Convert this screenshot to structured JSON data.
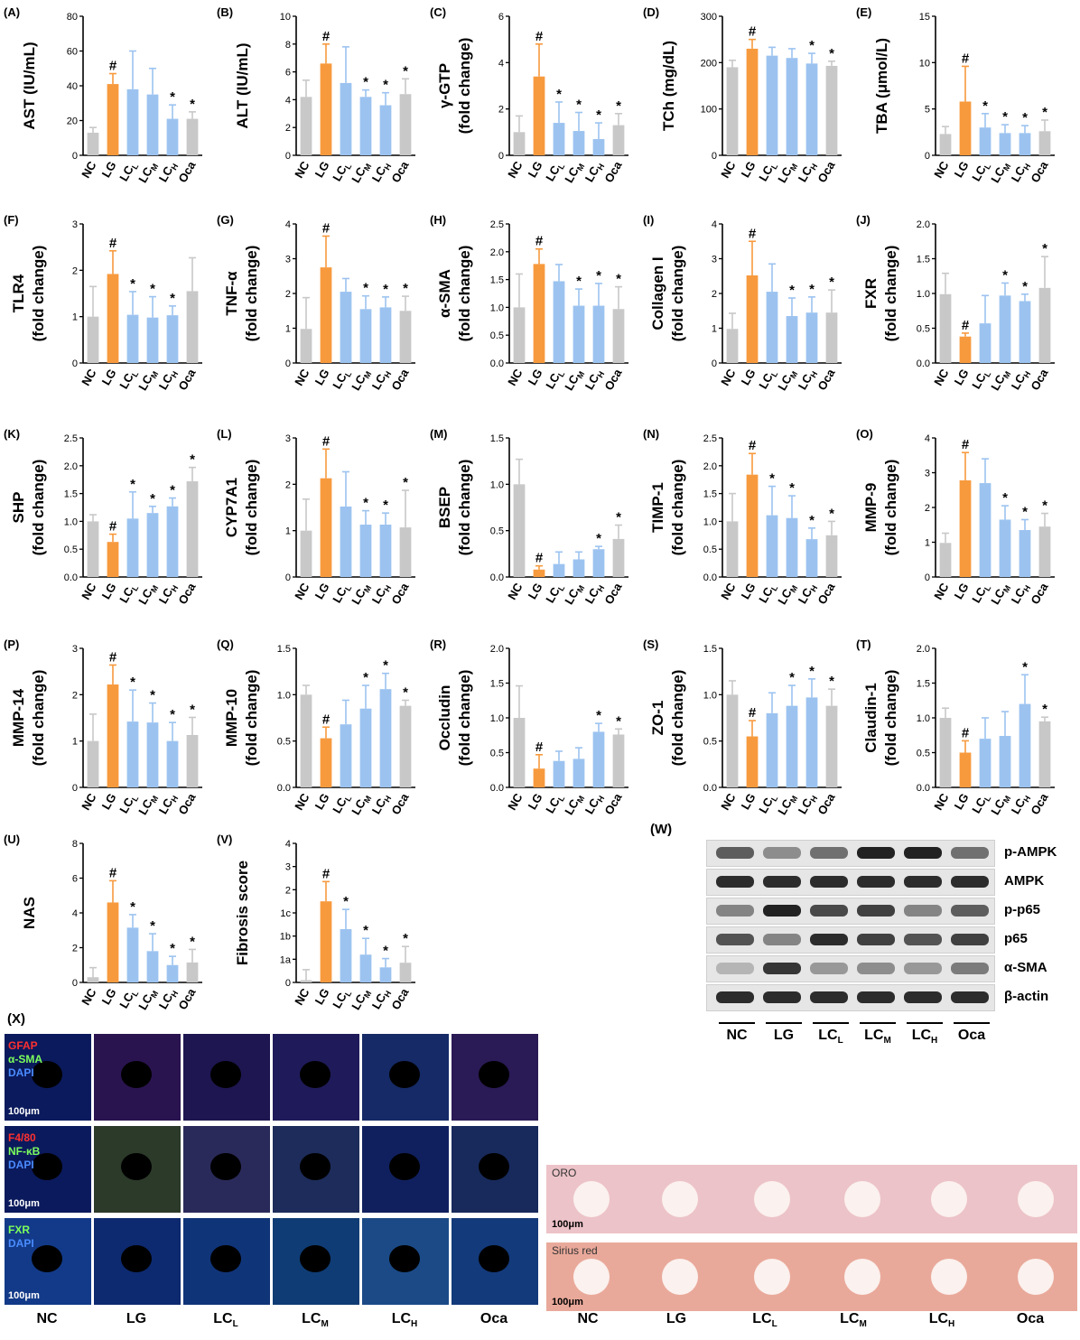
{
  "colors": {
    "nc": "#c8c8c8",
    "lg": "#f79a3e",
    "lc": "#9cc3f0",
    "oca": "#c8c8c8"
  },
  "groups": [
    "NC",
    "LG",
    "LCL",
    "LCM",
    "LCH",
    "Oca"
  ],
  "group_labels": [
    {
      "main": "NC",
      "sub": ""
    },
    {
      "main": "LG",
      "sub": ""
    },
    {
      "main": "LC",
      "sub": "L"
    },
    {
      "main": "LC",
      "sub": "M"
    },
    {
      "main": "LC",
      "sub": "H"
    },
    {
      "main": "Oca",
      "sub": ""
    }
  ],
  "chart_data": [
    {
      "panel": "(A)",
      "type": "bar",
      "ylabel": [
        "AST (IU/mL)"
      ],
      "yticks": [
        "0",
        "20",
        "40",
        "60",
        "80"
      ],
      "ylim": [
        0,
        80
      ],
      "values": [
        13,
        41,
        38,
        35,
        21,
        21
      ],
      "errors": [
        3,
        6,
        22,
        15,
        8,
        4
      ],
      "marks": [
        "",
        "#",
        "",
        "",
        "*",
        "*"
      ]
    },
    {
      "panel": "(B)",
      "type": "bar",
      "ylabel": [
        "ALT (IU/mL)"
      ],
      "yticks": [
        "0",
        "2",
        "4",
        "6",
        "8",
        "10"
      ],
      "ylim": [
        0,
        10
      ],
      "values": [
        4.2,
        6.6,
        5.2,
        4.2,
        3.6,
        4.4
      ],
      "errors": [
        1.2,
        1.4,
        2.6,
        0.5,
        0.9,
        1.1
      ],
      "marks": [
        "",
        "#",
        "",
        "*",
        "*",
        "*"
      ]
    },
    {
      "panel": "(C)",
      "type": "bar",
      "ylabel": [
        "γ-GTP",
        "(fold change)"
      ],
      "yticks": [
        "0",
        "2",
        "4",
        "6"
      ],
      "ylim": [
        0,
        6
      ],
      "values": [
        1.0,
        3.4,
        1.4,
        1.05,
        0.7,
        1.3
      ],
      "errors": [
        0.7,
        1.4,
        0.9,
        0.8,
        0.7,
        0.5
      ],
      "marks": [
        "",
        "#",
        "*",
        "*",
        "*",
        "*"
      ]
    },
    {
      "panel": "(D)",
      "type": "bar",
      "ylabel": [
        "TCh (mg/dL)"
      ],
      "yticks": [
        "0",
        "100",
        "200",
        "300"
      ],
      "ylim": [
        0,
        300
      ],
      "values": [
        190,
        230,
        215,
        210,
        198,
        193
      ],
      "errors": [
        15,
        20,
        18,
        20,
        22,
        10
      ],
      "marks": [
        "",
        "#",
        "",
        "",
        "*",
        "*"
      ]
    },
    {
      "panel": "(E)",
      "type": "bar",
      "ylabel": [
        "TBA (μmol/L)"
      ],
      "yticks": [
        "0",
        "5",
        "10",
        "15"
      ],
      "ylim": [
        0,
        15
      ],
      "values": [
        2.3,
        5.8,
        3.0,
        2.4,
        2.4,
        2.6
      ],
      "errors": [
        0.8,
        3.8,
        1.5,
        0.9,
        0.8,
        1.2
      ],
      "marks": [
        "",
        "#",
        "*",
        "*",
        "*",
        "*"
      ]
    },
    {
      "panel": "(F)",
      "type": "bar",
      "ylabel": [
        "TLR4",
        "(fold change)"
      ],
      "yticks": [
        "0",
        "1",
        "2",
        "3"
      ],
      "ylim": [
        0,
        3
      ],
      "values": [
        1.0,
        1.92,
        1.04,
        0.98,
        1.03,
        1.55
      ],
      "errors": [
        0.65,
        0.5,
        0.5,
        0.45,
        0.2,
        0.72
      ],
      "marks": [
        "",
        "#",
        "*",
        "*",
        "*",
        ""
      ]
    },
    {
      "panel": "(G)",
      "type": "bar",
      "ylabel": [
        "TNF-α",
        "(fold change)"
      ],
      "yticks": [
        "0",
        "1",
        "2",
        "3",
        "4"
      ],
      "ylim": [
        0,
        4
      ],
      "values": [
        0.98,
        2.75,
        2.05,
        1.55,
        1.6,
        1.5
      ],
      "errors": [
        0.9,
        0.9,
        0.38,
        0.38,
        0.3,
        0.42
      ],
      "marks": [
        "",
        "#",
        "",
        "*",
        "*",
        "*"
      ]
    },
    {
      "panel": "(H)",
      "type": "bar",
      "ylabel": [
        "α-SMA",
        "(fold change)"
      ],
      "yticks": [
        "0.0",
        "0.5",
        "1.0",
        "1.5",
        "2.0",
        "2.5"
      ],
      "ylim": [
        0,
        2.5
      ],
      "values": [
        1.0,
        1.78,
        1.47,
        1.03,
        1.03,
        0.97
      ],
      "errors": [
        0.6,
        0.27,
        0.3,
        0.3,
        0.4,
        0.4
      ],
      "marks": [
        "",
        "#",
        "",
        "*",
        "*",
        "*"
      ]
    },
    {
      "panel": "(I)",
      "type": "bar",
      "ylabel": [
        "Collagen I",
        "(fold change)"
      ],
      "yticks": [
        "0",
        "1",
        "2",
        "3",
        "4"
      ],
      "ylim": [
        0,
        4
      ],
      "values": [
        0.98,
        2.52,
        2.05,
        1.35,
        1.45,
        1.45
      ],
      "errors": [
        0.45,
        0.98,
        0.8,
        0.52,
        0.45,
        0.65
      ],
      "marks": [
        "",
        "#",
        "",
        "*",
        "*",
        "*"
      ]
    },
    {
      "panel": "(J)",
      "type": "bar",
      "ylabel": [
        "FXR",
        "(fold change)"
      ],
      "yticks": [
        "0.0",
        "0.5",
        "1.0",
        "1.5",
        "2.0"
      ],
      "ylim": [
        0,
        2.0
      ],
      "values": [
        0.99,
        0.38,
        0.57,
        0.97,
        0.89,
        1.08
      ],
      "errors": [
        0.3,
        0.05,
        0.4,
        0.18,
        0.1,
        0.45
      ],
      "marks": [
        "",
        "#",
        "",
        "*",
        "*",
        "*"
      ]
    },
    {
      "panel": "(K)",
      "type": "bar",
      "ylabel": [
        "SHP",
        "(fold change)"
      ],
      "yticks": [
        "0.0",
        "0.5",
        "1.0",
        "1.5",
        "2.0",
        "2.5"
      ],
      "ylim": [
        0,
        2.5
      ],
      "values": [
        1.0,
        0.63,
        1.05,
        1.15,
        1.27,
        1.72
      ],
      "errors": [
        0.12,
        0.14,
        0.48,
        0.12,
        0.15,
        0.25
      ],
      "marks": [
        "",
        "#",
        "*",
        "*",
        "*",
        "*"
      ]
    },
    {
      "panel": "(L)",
      "type": "bar",
      "ylabel": [
        "CYP7A1",
        "(fold change)"
      ],
      "yticks": [
        "0",
        "1",
        "2",
        "3"
      ],
      "ylim": [
        0,
        3
      ],
      "values": [
        1.0,
        2.13,
        1.52,
        1.13,
        1.13,
        1.07
      ],
      "errors": [
        0.68,
        0.63,
        0.75,
        0.3,
        0.25,
        0.8
      ],
      "marks": [
        "",
        "#",
        "",
        "*",
        "*",
        "*"
      ]
    },
    {
      "panel": "(M)",
      "type": "bar",
      "ylabel": [
        "BSEP",
        "(fold change)"
      ],
      "yticks": [
        "0.0",
        "0.5",
        "1.0",
        "1.5"
      ],
      "ylim": [
        0,
        1.5
      ],
      "values": [
        1.0,
        0.08,
        0.14,
        0.19,
        0.3,
        0.41
      ],
      "errors": [
        0.27,
        0.04,
        0.13,
        0.08,
        0.03,
        0.15
      ],
      "marks": [
        "",
        "#",
        "",
        "",
        "*",
        "*"
      ]
    },
    {
      "panel": "(N)",
      "type": "bar",
      "ylabel": [
        "TIMP-1",
        "(fold change)"
      ],
      "yticks": [
        "0.0",
        "0.5",
        "1.0",
        "1.5",
        "2.0",
        "2.5"
      ],
      "ylim": [
        0,
        2.5
      ],
      "values": [
        1.0,
        1.84,
        1.11,
        1.06,
        0.68,
        0.75
      ],
      "errors": [
        0.5,
        0.38,
        0.52,
        0.4,
        0.2,
        0.25
      ],
      "marks": [
        "",
        "#",
        "*",
        "*",
        "*",
        "*"
      ]
    },
    {
      "panel": "(O)",
      "type": "bar",
      "ylabel": [
        "MMP-9",
        "(fold change)"
      ],
      "yticks": [
        "0",
        "1",
        "2",
        "3",
        "4"
      ],
      "ylim": [
        0,
        4
      ],
      "values": [
        0.98,
        2.78,
        2.7,
        1.65,
        1.35,
        1.45
      ],
      "errors": [
        0.28,
        0.8,
        0.7,
        0.4,
        0.3,
        0.38
      ],
      "marks": [
        "",
        "#",
        "",
        "*",
        "*",
        "*"
      ]
    },
    {
      "panel": "(P)",
      "type": "bar",
      "ylabel": [
        "MMP-14",
        "(fold change)"
      ],
      "yticks": [
        "0",
        "1",
        "2",
        "3"
      ],
      "ylim": [
        0,
        3
      ],
      "values": [
        1.0,
        2.22,
        1.42,
        1.4,
        1.0,
        1.13
      ],
      "errors": [
        0.58,
        0.42,
        0.68,
        0.42,
        0.4,
        0.38
      ],
      "marks": [
        "",
        "#",
        "*",
        "*",
        "*",
        "*"
      ]
    },
    {
      "panel": "(Q)",
      "type": "bar",
      "ylabel": [
        "MMP-10",
        "(fold change)"
      ],
      "yticks": [
        "0.0",
        "0.5",
        "1.0",
        "1.5"
      ],
      "ylim": [
        0,
        1.5
      ],
      "values": [
        1.0,
        0.53,
        0.68,
        0.85,
        1.06,
        0.88
      ],
      "errors": [
        0.1,
        0.12,
        0.26,
        0.25,
        0.17,
        0.06
      ],
      "marks": [
        "",
        "#",
        "",
        "*",
        "*",
        "*"
      ]
    },
    {
      "panel": "(R)",
      "type": "bar",
      "ylabel": [
        "Occludin",
        "(fold change)"
      ],
      "yticks": [
        "0.0",
        "0.5",
        "1.0",
        "1.5",
        "2.0"
      ],
      "ylim": [
        0,
        2.0
      ],
      "values": [
        1.0,
        0.27,
        0.38,
        0.41,
        0.8,
        0.76
      ],
      "errors": [
        0.46,
        0.2,
        0.14,
        0.16,
        0.12,
        0.08
      ],
      "marks": [
        "",
        "#",
        "",
        "",
        "*",
        "*"
      ]
    },
    {
      "panel": "(S)",
      "type": "bar",
      "ylabel": [
        "ZO-1",
        "(fold change)"
      ],
      "yticks": [
        "0.0",
        "0.5",
        "1.0",
        "1.5"
      ],
      "ylim": [
        0,
        1.5
      ],
      "values": [
        1.0,
        0.55,
        0.8,
        0.88,
        0.97,
        0.88
      ],
      "errors": [
        0.15,
        0.17,
        0.22,
        0.22,
        0.2,
        0.18
      ],
      "marks": [
        "",
        "#",
        "",
        "*",
        "*",
        "*"
      ]
    },
    {
      "panel": "(T)",
      "type": "bar",
      "ylabel": [
        "Claudin-1",
        "(fold change)"
      ],
      "yticks": [
        "0.0",
        "0.5",
        "1.0",
        "1.5",
        "2.0"
      ],
      "ylim": [
        0,
        2.0
      ],
      "values": [
        1.0,
        0.5,
        0.7,
        0.74,
        1.2,
        0.95
      ],
      "errors": [
        0.14,
        0.17,
        0.3,
        0.35,
        0.42,
        0.06
      ],
      "marks": [
        "",
        "#",
        "",
        "",
        "*",
        "*"
      ]
    },
    {
      "panel": "(U)",
      "type": "bar",
      "ylabel": [
        "NAS"
      ],
      "yticks": [
        "0",
        "2",
        "4",
        "6",
        "8"
      ],
      "ylim": [
        0,
        8
      ],
      "values": [
        0.3,
        4.6,
        3.15,
        1.8,
        1.0,
        1.15
      ],
      "errors": [
        0.55,
        1.25,
        0.75,
        1.0,
        0.5,
        0.75
      ],
      "marks": [
        "",
        "#",
        "*",
        "*",
        "*",
        "*"
      ]
    },
    {
      "panel": "(V)",
      "type": "bar",
      "ylabel": [
        "Fibrosis score"
      ],
      "yticks": [
        "0",
        "1a",
        "1b",
        "1c",
        "2",
        "3",
        "4"
      ],
      "ylim": [
        0,
        6
      ],
      "values": [
        0.1,
        3.5,
        2.3,
        1.2,
        0.65,
        0.85
      ],
      "errors": [
        0.45,
        0.85,
        0.85,
        0.7,
        0.38,
        0.7
      ],
      "marks": [
        "",
        "#",
        "*",
        "*",
        "*",
        "*"
      ]
    }
  ],
  "western_blot": {
    "panel_label": "(W)",
    "rows": [
      "p-AMPK",
      "AMPK",
      "p-p65",
      "p65",
      "α-SMA",
      "β-actin"
    ],
    "intensities": [
      [
        0.7,
        0.45,
        0.6,
        1.0,
        1.0,
        0.6
      ],
      [
        0.95,
        0.95,
        0.95,
        0.95,
        0.95,
        0.95
      ],
      [
        0.5,
        1.0,
        0.8,
        0.85,
        0.5,
        0.7
      ],
      [
        0.75,
        0.5,
        0.95,
        0.85,
        0.75,
        0.85
      ],
      [
        0.25,
        0.9,
        0.4,
        0.45,
        0.4,
        0.55
      ],
      [
        0.95,
        0.95,
        0.95,
        0.95,
        0.95,
        0.95
      ]
    ]
  },
  "fluorescence": {
    "panel_label": "(X)",
    "rows": [
      {
        "stains": [
          {
            "text": "GFAP",
            "color": "#ff3030"
          },
          {
            "text": "α-SMA",
            "color": "#7cff5c"
          },
          {
            "text": "DAPI",
            "color": "#4a8cff"
          }
        ],
        "scale": "100μm"
      },
      {
        "stains": [
          {
            "text": "F4/80",
            "color": "#ff3030"
          },
          {
            "text": "NF-κB",
            "color": "#7cff5c"
          },
          {
            "text": "DAPI",
            "color": "#4a8cff"
          }
        ],
        "scale": "100μm"
      },
      {
        "stains": [
          {
            "text": "FXR",
            "color": "#7cff5c"
          },
          {
            "text": "DAPI",
            "color": "#4a8cff"
          }
        ],
        "scale": "100μm"
      }
    ]
  },
  "histology": {
    "rows": [
      {
        "title": "ORO",
        "scale": "100μm",
        "bg": "#ecc3c8"
      },
      {
        "title": "Sirius red",
        "scale": "100μm",
        "bg": "#e9a99a"
      }
    ]
  }
}
